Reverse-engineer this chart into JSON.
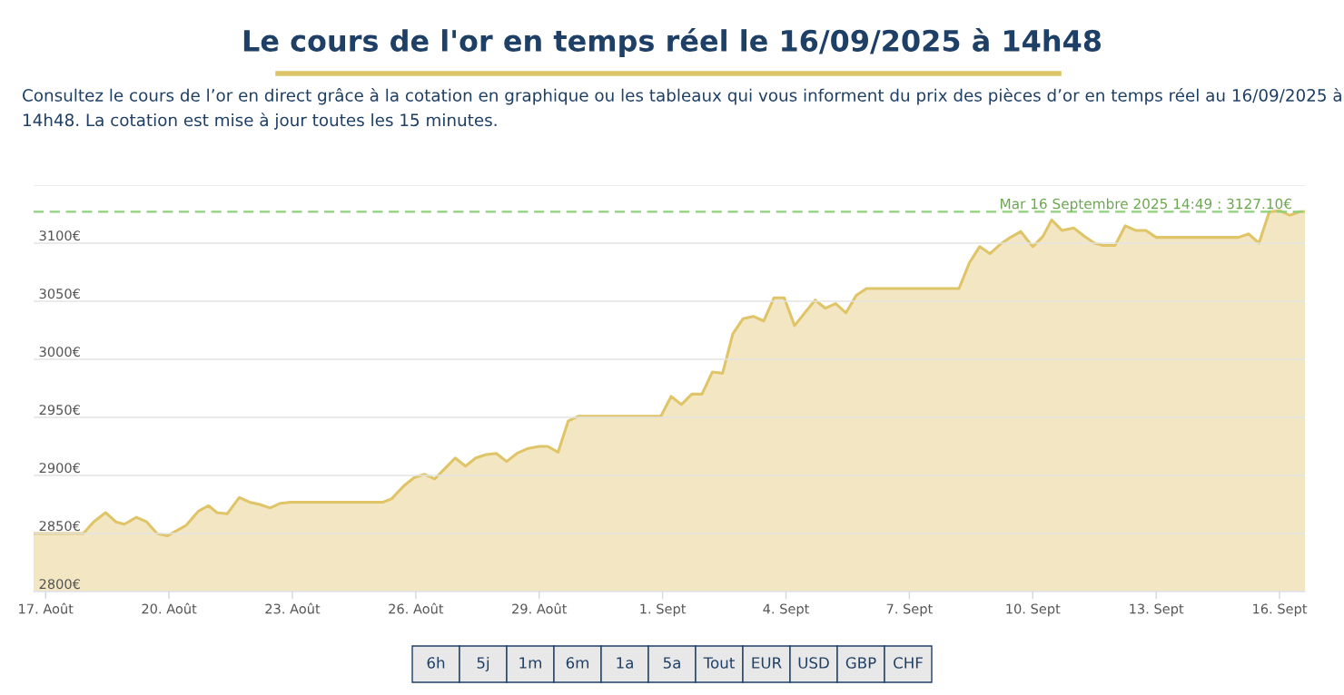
{
  "chart_data": {
    "type": "area",
    "title": "Le cours de l'or en temps réel le 16/09/2025 à 14h48",
    "subtitle": "Consultez le cours de l’or en direct grâce à la cotation en graphique ou les tableaux qui vous informent du prix des pièces d’or en temps réel au 16/09/2025 à 14h48. La cotation est mise à jour toutes les 15 minutes.",
    "x": [
      "2025-08-16T17:00",
      "2025-08-17T22:00",
      "2025-08-18T04:00",
      "2025-08-18T11:00",
      "2025-08-18T17:00",
      "2025-08-18T22:00",
      "2025-08-19T05:00",
      "2025-08-19T11:00",
      "2025-08-19T17:00",
      "2025-08-19T23:00",
      "2025-08-20T04:00",
      "2025-08-20T10:00",
      "2025-08-20T17:00",
      "2025-08-20T23:00",
      "2025-08-21T04:00",
      "2025-08-21T10:00",
      "2025-08-21T17:00",
      "2025-08-21T23:00",
      "2025-08-22T05:00",
      "2025-08-22T11:00",
      "2025-08-22T17:00",
      "2025-08-22T23:00",
      "2025-08-25T05:00",
      "2025-08-25T10:00",
      "2025-08-25T17:00",
      "2025-08-25T23:00",
      "2025-08-26T05:00",
      "2025-08-26T11:00",
      "2025-08-26T17:00",
      "2025-08-26T23:00",
      "2025-08-27T05:00",
      "2025-08-27T11:00",
      "2025-08-27T17:00",
      "2025-08-27T23:00",
      "2025-08-28T05:00",
      "2025-08-28T11:00",
      "2025-08-28T17:00",
      "2025-08-29T00:00",
      "2025-08-29T05:00",
      "2025-08-29T11:00",
      "2025-08-29T17:00",
      "2025-08-29T23:00",
      "2025-08-31T23:00",
      "2025-09-01T05:00",
      "2025-09-01T11:00",
      "2025-09-01T17:00",
      "2025-09-01T23:00",
      "2025-09-02T05:00",
      "2025-09-02T11:00",
      "2025-09-02T17:00",
      "2025-09-02T23:00",
      "2025-09-03T05:00",
      "2025-09-03T11:00",
      "2025-09-03T17:00",
      "2025-09-03T23:00",
      "2025-09-04T05:00",
      "2025-09-04T11:00",
      "2025-09-04T17:00",
      "2025-09-04T23:00",
      "2025-09-05T05:00",
      "2025-09-05T11:00",
      "2025-09-05T17:00",
      "2025-09-05T23:00",
      "2025-09-08T05:00",
      "2025-09-08T11:00",
      "2025-09-08T17:00",
      "2025-09-08T23:00",
      "2025-09-09T05:00",
      "2025-09-09T11:00",
      "2025-09-09T17:00",
      "2025-09-10T00:00",
      "2025-09-10T06:00",
      "2025-09-10T11:00",
      "2025-09-10T17:00",
      "2025-09-11T00:00",
      "2025-09-11T06:00",
      "2025-09-11T12:00",
      "2025-09-11T17:00",
      "2025-09-12T00:00",
      "2025-09-12T06:00",
      "2025-09-12T12:00",
      "2025-09-12T18:00",
      "2025-09-13T00:00",
      "2025-09-15T00:00",
      "2025-09-15T06:00",
      "2025-09-15T12:00",
      "2025-09-15T18:00",
      "2025-09-16T00:00",
      "2025-09-16T06:00",
      "2025-09-16T12:00",
      "2025-09-16T14:49"
    ],
    "series": [
      {
        "color": "#e0c468",
        "values": [
          2850,
          2850,
          2860,
          2868,
          2860,
          2858,
          2864,
          2860,
          2850,
          2848,
          2852,
          2857,
          2869,
          2874,
          2868,
          2867,
          2881,
          2877,
          2875,
          2872,
          2876,
          2877,
          2877,
          2880,
          2891,
          2898,
          2901,
          2897,
          2906,
          2915,
          2908,
          2915,
          2918,
          2919,
          2912,
          2919,
          2923,
          2925,
          2925,
          2920,
          2947,
          2951,
          2951,
          2968,
          2961,
          2970,
          2970,
          2989,
          2988,
          3022,
          3035,
          3037,
          3033,
          3053,
          3053,
          3029,
          3040,
          3051,
          3044,
          3048,
          3040,
          3055,
          3061,
          3061,
          3083,
          3097,
          3091,
          3099,
          3105,
          3110,
          3097,
          3106,
          3120,
          3111,
          3113,
          3106,
          3100,
          3098,
          3098,
          3115,
          3111,
          3111,
          3105,
          3105,
          3108,
          3100,
          3127,
          3128,
          3124,
          3127.1,
          3127.1
        ]
      }
    ],
    "xlim": [
      "2025-08-16T17:00",
      "2025-09-16T14:49"
    ],
    "xticks": [
      {
        "value": "2025-08-17",
        "label": "17. Août"
      },
      {
        "value": "2025-08-20",
        "label": "20. Août"
      },
      {
        "value": "2025-08-23",
        "label": "23. Août"
      },
      {
        "value": "2025-08-26",
        "label": "26. Août"
      },
      {
        "value": "2025-08-29",
        "label": "29. Août"
      },
      {
        "value": "2025-09-01",
        "label": "1. Sept"
      },
      {
        "value": "2025-09-04",
        "label": "4. Sept"
      },
      {
        "value": "2025-09-07",
        "label": "7. Sept"
      },
      {
        "value": "2025-09-10",
        "label": "10. Sept"
      },
      {
        "value": "2025-09-13",
        "label": "13. Sept"
      },
      {
        "value": "2025-09-16",
        "label": "16. Sept"
      }
    ],
    "ylim": [
      2800,
      3150
    ],
    "yticks": [
      {
        "value": 2800,
        "label": "2800€"
      },
      {
        "value": 2850,
        "label": "2850€"
      },
      {
        "value": 2900,
        "label": "2900€"
      },
      {
        "value": 2950,
        "label": "2950€"
      },
      {
        "value": 3000,
        "label": "3000€"
      },
      {
        "value": 3050,
        "label": "3050€"
      },
      {
        "value": 3100,
        "label": "3100€"
      },
      {
        "value": 3150,
        "label": null
      }
    ],
    "grid": "y",
    "ref_lines": [
      {
        "axis": "y",
        "value": 3127.1,
        "label": "Mar 16 Septembre 2025 14:49 : 3127.10€",
        "color": "#8fd07a",
        "line_style": "dashed"
      }
    ],
    "annotations": [
      "6h",
      "5j",
      "1m",
      "6m",
      "1a",
      "5a",
      "Tout",
      "EUR",
      "USD",
      "GBP",
      "CHF"
    ]
  }
}
